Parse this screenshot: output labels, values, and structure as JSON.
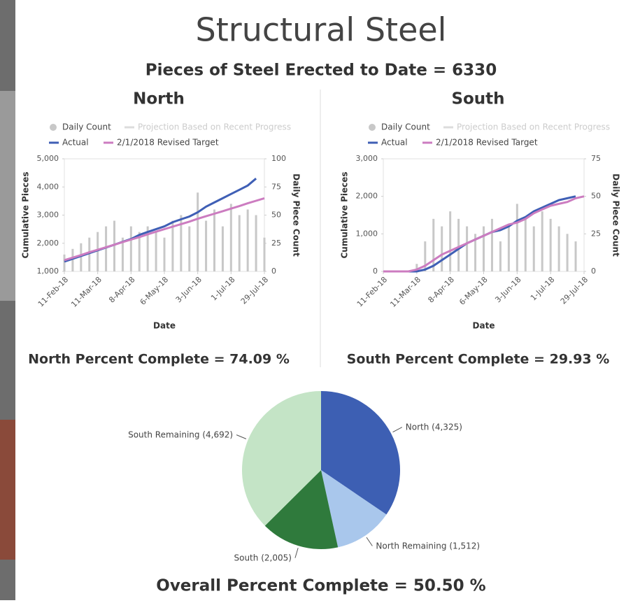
{
  "title": "Structural Steel",
  "subtitle": "Pieces of Steel Erected to Date = 6330",
  "footer": "Overall Percent Complete = 50.50 %",
  "chart_data": [
    {
      "type": "combo",
      "title": "North",
      "caption": "North Percent Complete = 74.09 %",
      "x_label": "Date",
      "y_label": "Cumulative Pieces",
      "y2_label": "Daily Piece Count",
      "x": [
        "2018-02-11",
        "2018-02-18",
        "2018-02-25",
        "2018-03-04",
        "2018-03-11",
        "2018-03-18",
        "2018-03-25",
        "2018-04-01",
        "2018-04-08",
        "2018-04-15",
        "2018-04-22",
        "2018-04-29",
        "2018-05-06",
        "2018-05-13",
        "2018-05-20",
        "2018-05-27",
        "2018-06-03",
        "2018-06-10",
        "2018-06-17",
        "2018-06-24",
        "2018-07-01",
        "2018-07-08",
        "2018-07-15",
        "2018-07-22",
        "2018-07-29"
      ],
      "xlim": [
        "2018-02-11",
        "2018-07-29"
      ],
      "xticks": [
        {
          "value": "2018-02-11",
          "label": "11-Feb-18"
        },
        {
          "value": "2018-03-11",
          "label": "11-Mar-18"
        },
        {
          "value": "2018-04-08",
          "label": "8-Apr-18"
        },
        {
          "value": "2018-05-06",
          "label": "6-May-18"
        },
        {
          "value": "2018-06-03",
          "label": "3-Jun-18"
        },
        {
          "value": "2018-07-01",
          "label": "1-Jul-18"
        },
        {
          "value": "2018-07-29",
          "label": "29-Jul-18"
        }
      ],
      "ylim": [
        1000,
        5000
      ],
      "yticks": [
        {
          "value": 1000,
          "label": "1,000"
        },
        {
          "value": 2000,
          "label": "2,000"
        },
        {
          "value": 3000,
          "label": "3,000"
        },
        {
          "value": 4000,
          "label": "4,000"
        },
        {
          "value": 5000,
          "label": "5,000"
        }
      ],
      "y2lim": [
        0,
        100
      ],
      "y2ticks": [
        0,
        25,
        50,
        75,
        100
      ],
      "series": [
        {
          "name": "Daily Count",
          "kind": "bar",
          "axis": "y2",
          "color": "#c8c8c8",
          "values": [
            15,
            20,
            25,
            30,
            35,
            40,
            45,
            30,
            40,
            35,
            40,
            35,
            30,
            45,
            50,
            40,
            70,
            45,
            55,
            40,
            60,
            50,
            55,
            50,
            30
          ]
        },
        {
          "name": "Projection Based on Recent Progress",
          "kind": "line",
          "color": "#dcdcdc",
          "values": [
            null,
            null,
            null,
            null,
            null,
            null,
            null,
            null,
            null,
            null,
            null,
            null,
            null,
            null,
            null,
            null,
            null,
            null,
            null,
            null,
            null,
            null,
            null,
            null,
            null
          ]
        },
        {
          "name": "Actual",
          "kind": "line",
          "color": "#3f5fb5",
          "values": [
            1350,
            1450,
            1550,
            1650,
            1750,
            1850,
            1950,
            2050,
            2150,
            2300,
            2400,
            2500,
            2600,
            2750,
            2850,
            2950,
            3100,
            3300,
            3450,
            3600,
            3750,
            3900,
            4050,
            4300,
            null
          ]
        },
        {
          "name": "2/1/2018 Revised Target",
          "kind": "line",
          "color": "#cc7cc0",
          "values": [
            1400,
            1490,
            1580,
            1680,
            1770,
            1860,
            1950,
            2040,
            2130,
            2220,
            2320,
            2410,
            2500,
            2590,
            2680,
            2770,
            2870,
            2960,
            3050,
            3140,
            3230,
            3320,
            3420,
            3510,
            3600
          ]
        }
      ]
    },
    {
      "type": "combo",
      "title": "South",
      "caption": "South Percent Complete = 29.93 %",
      "x_label": "Date",
      "y_label": "Cumulative Pieces",
      "y2_label": "Daily Piece Count",
      "x": [
        "2018-02-11",
        "2018-02-18",
        "2018-02-25",
        "2018-03-04",
        "2018-03-11",
        "2018-03-18",
        "2018-03-25",
        "2018-04-01",
        "2018-04-08",
        "2018-04-15",
        "2018-04-22",
        "2018-04-29",
        "2018-05-06",
        "2018-05-13",
        "2018-05-20",
        "2018-05-27",
        "2018-06-03",
        "2018-06-10",
        "2018-06-17",
        "2018-06-24",
        "2018-07-01",
        "2018-07-08",
        "2018-07-15",
        "2018-07-22",
        "2018-07-29"
      ],
      "xlim": [
        "2018-02-11",
        "2018-07-29"
      ],
      "xticks": [
        {
          "value": "2018-02-11",
          "label": "11-Feb-18"
        },
        {
          "value": "2018-03-11",
          "label": "11-Mar-18"
        },
        {
          "value": "2018-04-08",
          "label": "8-Apr-18"
        },
        {
          "value": "2018-05-06",
          "label": "6-May-18"
        },
        {
          "value": "2018-06-03",
          "label": "3-Jun-18"
        },
        {
          "value": "2018-07-01",
          "label": "1-Jul-18"
        },
        {
          "value": "2018-07-29",
          "label": "29-Jul-18"
        }
      ],
      "ylim": [
        0,
        3000
      ],
      "yticks": [
        0,
        {
          "value": 1000,
          "label": "1,000"
        },
        {
          "value": 2000,
          "label": "2,000"
        },
        {
          "value": 3000,
          "label": "3,000"
        }
      ],
      "y2lim": [
        0,
        75
      ],
      "y2ticks": [
        0,
        25,
        50,
        75
      ],
      "series": [
        {
          "name": "Daily Count",
          "kind": "bar",
          "axis": "y2",
          "color": "#c8c8c8",
          "values": [
            0,
            0,
            0,
            0,
            5,
            20,
            35,
            30,
            40,
            35,
            30,
            25,
            30,
            35,
            20,
            30,
            45,
            35,
            30,
            40,
            35,
            30,
            25,
            20,
            0
          ]
        },
        {
          "name": "Projection Based on Recent Progress",
          "kind": "line",
          "color": "#dcdcdc",
          "values": [
            null,
            null,
            null,
            null,
            null,
            null,
            null,
            null,
            null,
            null,
            null,
            null,
            null,
            null,
            null,
            null,
            null,
            null,
            null,
            null,
            null,
            null,
            null,
            null,
            null
          ]
        },
        {
          "name": "Actual",
          "kind": "line",
          "color": "#3f5fb5",
          "values": [
            0,
            0,
            0,
            0,
            0,
            50,
            150,
            300,
            450,
            600,
            750,
            850,
            950,
            1050,
            1100,
            1200,
            1350,
            1450,
            1600,
            1700,
            1800,
            1900,
            1950,
            2000,
            null
          ]
        },
        {
          "name": "2/1/2018 Revised Target",
          "kind": "line",
          "color": "#cc7cc0",
          "values": [
            0,
            0,
            0,
            0,
            50,
            150,
            300,
            450,
            550,
            650,
            750,
            850,
            950,
            1050,
            1150,
            1250,
            1300,
            1400,
            1550,
            1650,
            1750,
            1800,
            1850,
            1950,
            2000
          ]
        }
      ]
    },
    {
      "type": "pie",
      "categories": [
        "North",
        "North Remaining",
        "South",
        "South Remaining"
      ],
      "values": [
        4325,
        1512,
        2005,
        4692
      ],
      "value_labels": [
        "(4,325)",
        "(1,512)",
        "(2,005)",
        "(4,692)"
      ],
      "colors": [
        "#3d5fb3",
        "#a9c7ec",
        "#2f7a3c",
        "#c4e4c6"
      ]
    }
  ]
}
